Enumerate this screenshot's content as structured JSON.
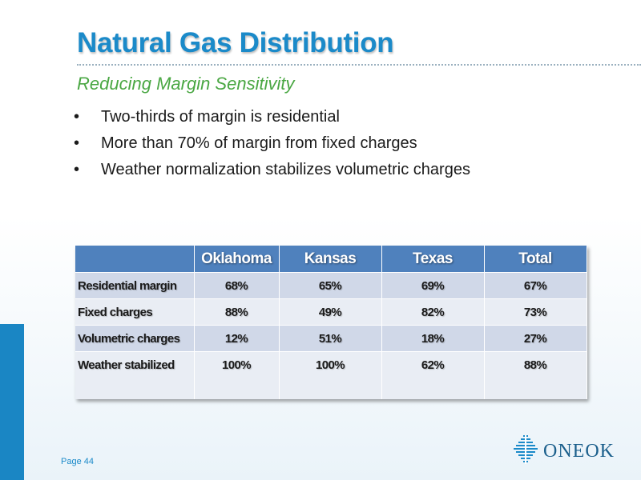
{
  "slide": {
    "title": "Natural Gas Distribution",
    "subtitle": "Reducing Margin Sensitivity",
    "bullets": [
      "Two-thirds of margin is residential",
      "More than 70% of margin from fixed charges",
      "Weather normalization stabilizes volumetric charges"
    ],
    "bullet_glyph": "•",
    "page_label": "Page 44"
  },
  "table": {
    "headers": [
      "",
      "Oklahoma",
      "Kansas",
      "Texas",
      "Total"
    ],
    "rows": [
      {
        "label": "Residential margin",
        "values": [
          "68%",
          "65%",
          "69%",
          "67%"
        ]
      },
      {
        "label": "Fixed charges",
        "values": [
          "88%",
          "49%",
          "82%",
          "73%"
        ]
      },
      {
        "label": "Volumetric charges",
        "values": [
          "12%",
          "51%",
          "18%",
          "27%"
        ]
      },
      {
        "label": "Weather stabilized",
        "values": [
          "100%",
          "100%",
          "62%",
          "88%"
        ]
      }
    ]
  },
  "logo": {
    "text": "ONEOK",
    "icon": "oneok-logo-icon"
  },
  "colors": {
    "title_blue": "#1b8ac9",
    "subtitle_green": "#4aa743",
    "table_header": "#4f81bd",
    "left_accent": "#1a86c4"
  }
}
